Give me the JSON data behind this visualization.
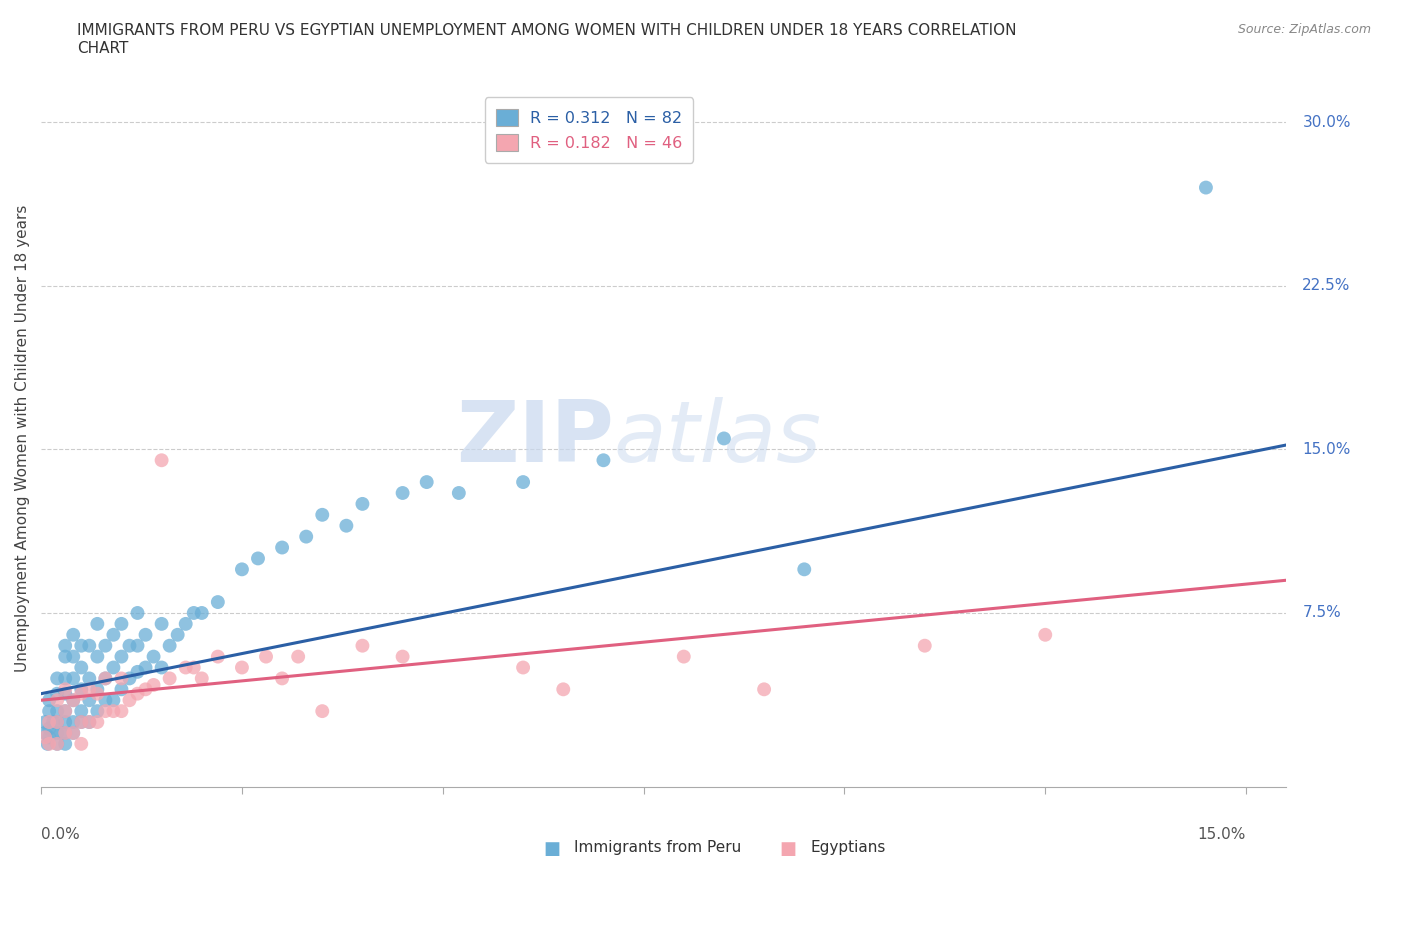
{
  "title": "IMMIGRANTS FROM PERU VS EGYPTIAN UNEMPLOYMENT AMONG WOMEN WITH CHILDREN UNDER 18 YEARS CORRELATION\nCHART",
  "source": "Source: ZipAtlas.com",
  "ylabel": "Unemployment Among Women with Children Under 18 years",
  "x_ticks": [
    0.0,
    0.025,
    0.05,
    0.075,
    0.1,
    0.125,
    0.15
  ],
  "y_ticks": [
    0.0,
    0.075,
    0.15,
    0.225,
    0.3
  ],
  "y_tick_labels_right": [
    "",
    "7.5%",
    "15.0%",
    "22.5%",
    "30.0%"
  ],
  "xlim": [
    0.0,
    0.155
  ],
  "ylim": [
    -0.005,
    0.315
  ],
  "peru_color": "#6aaed6",
  "egypt_color": "#f4a6b0",
  "peru_line_color": "#2b5fa5",
  "egypt_line_color": "#e06080",
  "legend_R_peru": "R = 0.312",
  "legend_N_peru": "N = 82",
  "legend_R_egypt": "R = 0.182",
  "legend_N_egypt": "N = 46",
  "peru_scatter_x": [
    0.0005,
    0.0005,
    0.0008,
    0.001,
    0.001,
    0.001,
    0.001,
    0.0015,
    0.002,
    0.002,
    0.002,
    0.002,
    0.002,
    0.002,
    0.0025,
    0.003,
    0.003,
    0.003,
    0.003,
    0.003,
    0.003,
    0.003,
    0.003,
    0.004,
    0.004,
    0.004,
    0.004,
    0.004,
    0.004,
    0.005,
    0.005,
    0.005,
    0.005,
    0.005,
    0.006,
    0.006,
    0.006,
    0.006,
    0.007,
    0.007,
    0.007,
    0.007,
    0.008,
    0.008,
    0.008,
    0.009,
    0.009,
    0.009,
    0.01,
    0.01,
    0.01,
    0.011,
    0.011,
    0.012,
    0.012,
    0.012,
    0.013,
    0.013,
    0.014,
    0.015,
    0.015,
    0.016,
    0.017,
    0.018,
    0.019,
    0.02,
    0.022,
    0.025,
    0.027,
    0.03,
    0.033,
    0.035,
    0.038,
    0.04,
    0.045,
    0.048,
    0.052,
    0.06,
    0.07,
    0.085,
    0.095,
    0.145
  ],
  "peru_scatter_y": [
    0.02,
    0.025,
    0.015,
    0.018,
    0.022,
    0.03,
    0.035,
    0.025,
    0.015,
    0.02,
    0.025,
    0.03,
    0.038,
    0.045,
    0.02,
    0.015,
    0.02,
    0.025,
    0.03,
    0.038,
    0.045,
    0.055,
    0.06,
    0.02,
    0.025,
    0.035,
    0.045,
    0.055,
    0.065,
    0.025,
    0.03,
    0.04,
    0.05,
    0.06,
    0.025,
    0.035,
    0.045,
    0.06,
    0.03,
    0.04,
    0.055,
    0.07,
    0.035,
    0.045,
    0.06,
    0.035,
    0.05,
    0.065,
    0.04,
    0.055,
    0.07,
    0.045,
    0.06,
    0.048,
    0.06,
    0.075,
    0.05,
    0.065,
    0.055,
    0.05,
    0.07,
    0.06,
    0.065,
    0.07,
    0.075,
    0.075,
    0.08,
    0.095,
    0.1,
    0.105,
    0.11,
    0.12,
    0.115,
    0.125,
    0.13,
    0.135,
    0.13,
    0.135,
    0.145,
    0.155,
    0.095,
    0.27
  ],
  "egypt_scatter_x": [
    0.0005,
    0.001,
    0.001,
    0.002,
    0.002,
    0.002,
    0.003,
    0.003,
    0.003,
    0.004,
    0.004,
    0.005,
    0.005,
    0.005,
    0.006,
    0.006,
    0.007,
    0.007,
    0.008,
    0.008,
    0.009,
    0.01,
    0.01,
    0.011,
    0.012,
    0.013,
    0.014,
    0.015,
    0.016,
    0.018,
    0.019,
    0.02,
    0.022,
    0.025,
    0.028,
    0.03,
    0.032,
    0.035,
    0.04,
    0.045,
    0.06,
    0.065,
    0.08,
    0.09,
    0.11,
    0.125
  ],
  "egypt_scatter_y": [
    0.018,
    0.015,
    0.025,
    0.015,
    0.025,
    0.035,
    0.02,
    0.03,
    0.04,
    0.02,
    0.035,
    0.015,
    0.025,
    0.038,
    0.025,
    0.04,
    0.025,
    0.038,
    0.03,
    0.045,
    0.03,
    0.03,
    0.045,
    0.035,
    0.038,
    0.04,
    0.042,
    0.145,
    0.045,
    0.05,
    0.05,
    0.045,
    0.055,
    0.05,
    0.055,
    0.045,
    0.055,
    0.03,
    0.06,
    0.055,
    0.05,
    0.04,
    0.055,
    0.04,
    0.06,
    0.065
  ],
  "watermark_zip": "ZIP",
  "watermark_atlas": "atlas",
  "grid_color": "#cccccc",
  "background_color": "#ffffff"
}
